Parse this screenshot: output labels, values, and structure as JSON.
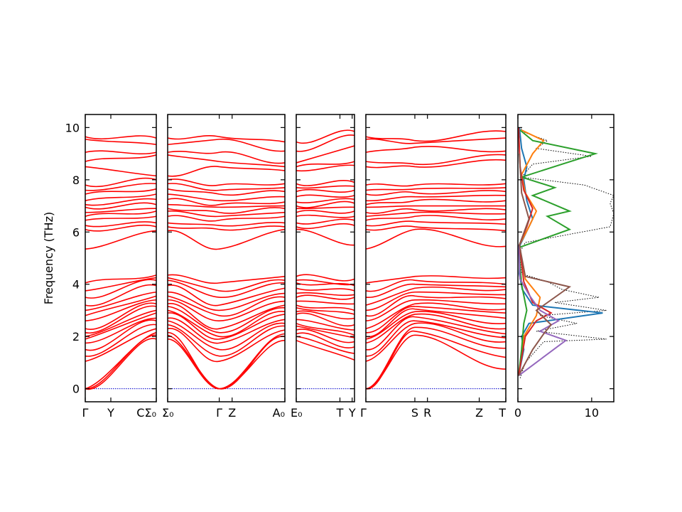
{
  "chart_data": {
    "type": "line",
    "ylabel": "Frequency (THz)",
    "ylim": [
      -0.5,
      10.5
    ],
    "yticks": [
      "0",
      "2",
      "4",
      "6",
      "8",
      "10"
    ],
    "zero_line": 0,
    "band_color": "#ff0000",
    "segments": [
      {
        "labels": [
          "Γ",
          "Y",
          "C",
          "Σ₀"
        ],
        "label_fractions": [
          0.0,
          0.36,
          1.0
        ],
        "merged_end_label": true,
        "bands_start": [
          0,
          0,
          0,
          1.05,
          1.25,
          1.5,
          1.75,
          1.9,
          2.0,
          2.15,
          2.3,
          2.6,
          2.8,
          3.0,
          3.2,
          3.5,
          3.75,
          4.05,
          5.35,
          6.1,
          6.25,
          6.45,
          6.6,
          6.75,
          6.95,
          7.05,
          7.2,
          7.45,
          7.6,
          7.8,
          8.5,
          8.7,
          9.05,
          9.55,
          9.65
        ],
        "bands_end": [
          1.9,
          2.05,
          2.15,
          2.3,
          2.45,
          2.6,
          2.7,
          2.9,
          3.0,
          3.15,
          3.25,
          3.4,
          3.55,
          3.7,
          3.95,
          4.15,
          4.25,
          4.35,
          6.05,
          6.2,
          6.35,
          6.6,
          6.8,
          6.9,
          7.05,
          7.25,
          7.45,
          7.65,
          7.85,
          8.0,
          8.15,
          8.95,
          9.05,
          9.35,
          9.6
        ]
      },
      {
        "labels": [
          "Σ₀",
          "Γ",
          "Z",
          "A₀"
        ],
        "label_fractions": [
          0.0,
          0.44,
          0.55,
          1.0
        ],
        "bands_start": [
          1.9,
          2.05,
          2.15,
          2.3,
          2.45,
          2.6,
          2.7,
          2.9,
          3.0,
          3.15,
          3.25,
          3.4,
          3.55,
          3.7,
          3.95,
          4.15,
          4.25,
          4.35,
          6.05,
          6.2,
          6.35,
          6.6,
          6.8,
          6.9,
          7.05,
          7.25,
          7.45,
          7.65,
          7.85,
          8.0,
          8.15,
          8.95,
          9.05,
          9.35,
          9.6
        ],
        "bands_mid": [
          0,
          0,
          0,
          1.05,
          1.25,
          1.5,
          1.75,
          1.9,
          2.0,
          2.15,
          2.3,
          2.6,
          2.8,
          3.0,
          3.2,
          3.5,
          3.75,
          4.05,
          5.35,
          6.1,
          6.25,
          6.45,
          6.6,
          6.75,
          6.95,
          7.05,
          7.2,
          7.45,
          7.6,
          7.8,
          8.5,
          8.7,
          9.05,
          9.55,
          9.65
        ],
        "bands_end": [
          1.85,
          2.0,
          2.1,
          2.25,
          2.4,
          2.5,
          2.65,
          2.85,
          2.95,
          3.1,
          3.2,
          3.35,
          3.5,
          3.65,
          3.85,
          4.05,
          4.15,
          4.3,
          6.1,
          6.2,
          6.35,
          6.6,
          6.75,
          6.9,
          7.0,
          7.15,
          7.35,
          7.55,
          7.7,
          7.85,
          8.35,
          8.5,
          8.65,
          9.1,
          9.45
        ]
      },
      {
        "labels": [
          "E₀",
          "T",
          "Y"
        ],
        "label_fractions": [
          0.0,
          0.75,
          0.96
        ],
        "bands_start": [
          1.85,
          2.0,
          2.1,
          2.25,
          2.4,
          2.5,
          2.65,
          2.85,
          2.95,
          3.1,
          3.2,
          3.35,
          3.5,
          3.65,
          3.85,
          4.05,
          4.15,
          4.3,
          6.1,
          6.2,
          6.35,
          6.6,
          6.75,
          6.9,
          7.0,
          7.15,
          7.35,
          7.55,
          7.7,
          7.85,
          8.35,
          8.5,
          8.65,
          9.1,
          9.45
        ],
        "bands_end": [
          1.1,
          1.35,
          1.6,
          1.8,
          1.95,
          2.05,
          2.25,
          2.45,
          2.7,
          2.85,
          3.0,
          3.25,
          3.5,
          3.6,
          3.75,
          3.95,
          4.0,
          4.2,
          5.5,
          6.25,
          6.45,
          6.6,
          6.8,
          6.95,
          7.1,
          7.25,
          7.4,
          7.6,
          7.75,
          7.9,
          8.55,
          8.7,
          9.3,
          9.7,
          9.85
        ]
      },
      {
        "labels": [
          "Γ",
          "S",
          "R",
          "Z",
          "T"
        ],
        "label_fractions": [
          0.0,
          0.35,
          0.44,
          0.81,
          1.0
        ],
        "bands_start": [
          0,
          0,
          0,
          1.05,
          1.25,
          1.5,
          1.75,
          1.9,
          2.0,
          2.15,
          2.3,
          2.6,
          2.8,
          3.0,
          3.2,
          3.5,
          3.75,
          4.05,
          5.35,
          6.1,
          6.25,
          6.45,
          6.6,
          6.75,
          6.95,
          7.05,
          7.2,
          7.45,
          7.6,
          7.8,
          8.5,
          8.7,
          9.05,
          9.55,
          9.65
        ],
        "bands_mid": [
          2.05,
          2.2,
          2.35,
          2.5,
          2.6,
          2.75,
          2.85,
          2.95,
          3.05,
          3.15,
          3.25,
          3.4,
          3.55,
          3.7,
          3.85,
          4.0,
          4.15,
          4.3,
          6.1,
          6.2,
          6.4,
          6.6,
          6.75,
          6.85,
          7.0,
          7.2,
          7.35,
          7.5,
          7.65,
          7.8,
          8.5,
          8.6,
          9.25,
          9.4,
          9.5
        ],
        "bands_end": [
          0.75,
          1.2,
          1.55,
          1.8,
          1.95,
          2.1,
          2.3,
          2.5,
          2.7,
          2.9,
          3.05,
          3.25,
          3.45,
          3.6,
          3.8,
          3.9,
          4.0,
          4.25,
          5.45,
          6.05,
          6.3,
          6.5,
          6.7,
          6.85,
          7.0,
          7.2,
          7.4,
          7.55,
          7.7,
          7.85,
          8.75,
          8.95,
          9.1,
          9.6,
          9.85
        ]
      }
    ],
    "dos": {
      "xlim": [
        0,
        13
      ],
      "xticks": [
        "0",
        "10"
      ],
      "series": [
        {
          "color": "#000000",
          "style": "dotted",
          "points": [
            [
              0.3,
              0.4
            ],
            [
              1.0,
              1.0
            ],
            [
              3.5,
              1.8
            ],
            [
              12.0,
              1.9
            ],
            [
              2.5,
              2.2
            ],
            [
              8.0,
              2.5
            ],
            [
              3.0,
              2.8
            ],
            [
              12.0,
              3.0
            ],
            [
              5.0,
              3.3
            ],
            [
              11.0,
              3.5
            ],
            [
              6.0,
              3.8
            ],
            [
              4.0,
              4.1
            ],
            [
              0.5,
              4.4
            ],
            [
              0.2,
              5.2
            ],
            [
              1.0,
              5.6
            ],
            [
              12.5,
              6.2
            ],
            [
              13.0,
              6.7
            ],
            [
              12.5,
              7.1
            ],
            [
              13.0,
              7.4
            ],
            [
              9.0,
              7.8
            ],
            [
              0.5,
              8.1
            ],
            [
              2.0,
              8.6
            ],
            [
              10.0,
              8.9
            ],
            [
              2.5,
              9.2
            ],
            [
              4.0,
              9.5
            ],
            [
              1.0,
              9.8
            ],
            [
              0.2,
              10.0
            ]
          ]
        },
        {
          "color": "#1f77b4",
          "style": "solid",
          "points": [
            [
              0.1,
              0.5
            ],
            [
              0.8,
              1.5
            ],
            [
              0.5,
              2.0
            ],
            [
              1.5,
              2.5
            ],
            [
              11.5,
              2.9
            ],
            [
              2.0,
              3.2
            ],
            [
              0.6,
              3.8
            ],
            [
              0.2,
              4.4
            ],
            [
              0.3,
              5.5
            ],
            [
              2.0,
              6.5
            ],
            [
              1.2,
              7.2
            ],
            [
              0.8,
              8.0
            ],
            [
              1.2,
              8.5
            ],
            [
              0.5,
              9.2
            ],
            [
              0.2,
              10.0
            ]
          ]
        },
        {
          "color": "#ff7f0e",
          "style": "solid",
          "points": [
            [
              0.1,
              0.5
            ],
            [
              0.8,
              2.0
            ],
            [
              2.5,
              2.8
            ],
            [
              3.0,
              3.5
            ],
            [
              1.0,
              4.2
            ],
            [
              0.2,
              5.5
            ],
            [
              1.5,
              6.2
            ],
            [
              2.5,
              6.8
            ],
            [
              1.0,
              7.5
            ],
            [
              0.5,
              8.2
            ],
            [
              2.0,
              9.0
            ],
            [
              3.5,
              9.5
            ],
            [
              0.5,
              9.9
            ]
          ]
        },
        {
          "color": "#2ca02c",
          "style": "solid",
          "points": [
            [
              0.1,
              0.5
            ],
            [
              0.5,
              1.5
            ],
            [
              0.8,
              2.5
            ],
            [
              1.2,
              3.0
            ],
            [
              0.5,
              4.0
            ],
            [
              0.1,
              5.4
            ],
            [
              7.0,
              6.1
            ],
            [
              4.0,
              6.6
            ],
            [
              7.0,
              6.8
            ],
            [
              2.0,
              7.4
            ],
            [
              5.0,
              7.7
            ],
            [
              0.5,
              8.1
            ],
            [
              6.0,
              8.6
            ],
            [
              10.5,
              9.0
            ],
            [
              2.0,
              9.5
            ],
            [
              0.3,
              9.9
            ]
          ]
        },
        {
          "color": "#d62728",
          "style": "solid",
          "points": [
            [
              0.1,
              0.5
            ],
            [
              1.0,
              2.0
            ],
            [
              2.5,
              2.6
            ],
            [
              4.5,
              2.9
            ],
            [
              2.0,
              3.3
            ],
            [
              0.8,
              4.1
            ],
            [
              0.2,
              5.5
            ],
            [
              1.2,
              6.2
            ],
            [
              2.0,
              6.9
            ],
            [
              0.8,
              7.6
            ],
            [
              0.3,
              8.5
            ],
            [
              0.1,
              10.0
            ]
          ]
        },
        {
          "color": "#9467bd",
          "style": "solid",
          "points": [
            [
              0.1,
              0.5
            ],
            [
              6.5,
              1.85
            ],
            [
              3.0,
              2.2
            ],
            [
              5.5,
              2.6
            ],
            [
              3.0,
              3.0
            ],
            [
              1.5,
              3.6
            ],
            [
              0.3,
              4.2
            ],
            [
              0.1,
              5.5
            ]
          ]
        },
        {
          "color": "#8c564b",
          "style": "solid",
          "points": [
            [
              0.1,
              0.5
            ],
            [
              2.0,
              1.5
            ],
            [
              3.5,
              2.1
            ],
            [
              4.5,
              2.45
            ],
            [
              2.5,
              3.0
            ],
            [
              7.0,
              3.9
            ],
            [
              1.0,
              4.3
            ],
            [
              0.2,
              5.5
            ],
            [
              1.5,
              6.5
            ],
            [
              0.5,
              7.5
            ],
            [
              0.2,
              9.0
            ]
          ]
        }
      ]
    }
  }
}
